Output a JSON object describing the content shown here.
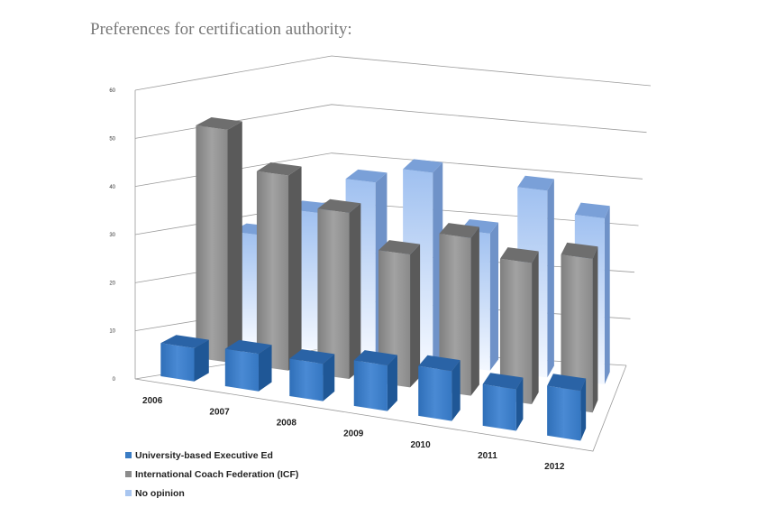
{
  "title": "Preferences for certification authority:",
  "chart_data": {
    "type": "bar",
    "variant": "3d-clustered-rows",
    "title": "",
    "categories": [
      "2006",
      "2007",
      "2008",
      "2009",
      "2010",
      "2011",
      "2012"
    ],
    "ylim": [
      0,
      60
    ],
    "yticks": [
      "0",
      "10",
      "20",
      "30",
      "40",
      "50",
      "60"
    ],
    "grid": true,
    "legend_position": "bottom-left",
    "series": [
      {
        "name": "University-based Executive Ed",
        "color": "#3a7cc4",
        "values": [
          8,
          9,
          9,
          11,
          12,
          10,
          12
        ]
      },
      {
        "name": "International Coach Federation (ICF)",
        "color": "#8c8c8c",
        "values": [
          56,
          47,
          40,
          32,
          38,
          34,
          37
        ]
      },
      {
        "name": "No opinion",
        "color": "#a9c6f0",
        "values": [
          26,
          33,
          42,
          46,
          33,
          45,
          40
        ]
      }
    ]
  }
}
